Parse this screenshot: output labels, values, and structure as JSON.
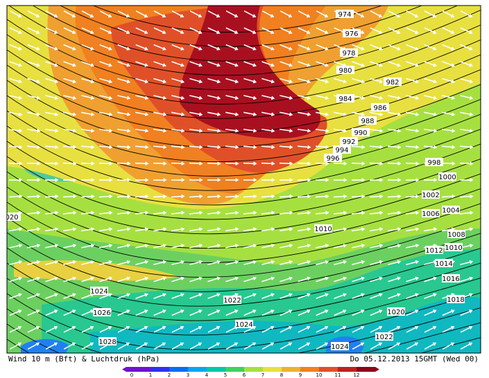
{
  "map": {
    "caption_left": "Wind 10 m (Bft) & Luchtdruk (hPa)",
    "caption_right": "Do 05.12.2013 15GMT (Wed 00)",
    "colorbar_labels": [
      "0",
      "1",
      "2",
      "3",
      "4",
      "5",
      "6",
      "7",
      "8",
      "9",
      "10",
      "11",
      "12"
    ],
    "isobar_labels": [
      "974",
      "976",
      "978",
      "980",
      "982",
      "984",
      "986",
      "988",
      "990",
      "992",
      "994",
      "996",
      "998",
      "1000",
      "1002",
      "1004",
      "1006",
      "1008",
      "1010",
      "1010",
      "1012",
      "1014",
      "1016",
      "1018",
      "1020",
      "020",
      "1022",
      "1022",
      "1024",
      "1024",
      "1024",
      "1026",
      "1028"
    ]
  }
}
